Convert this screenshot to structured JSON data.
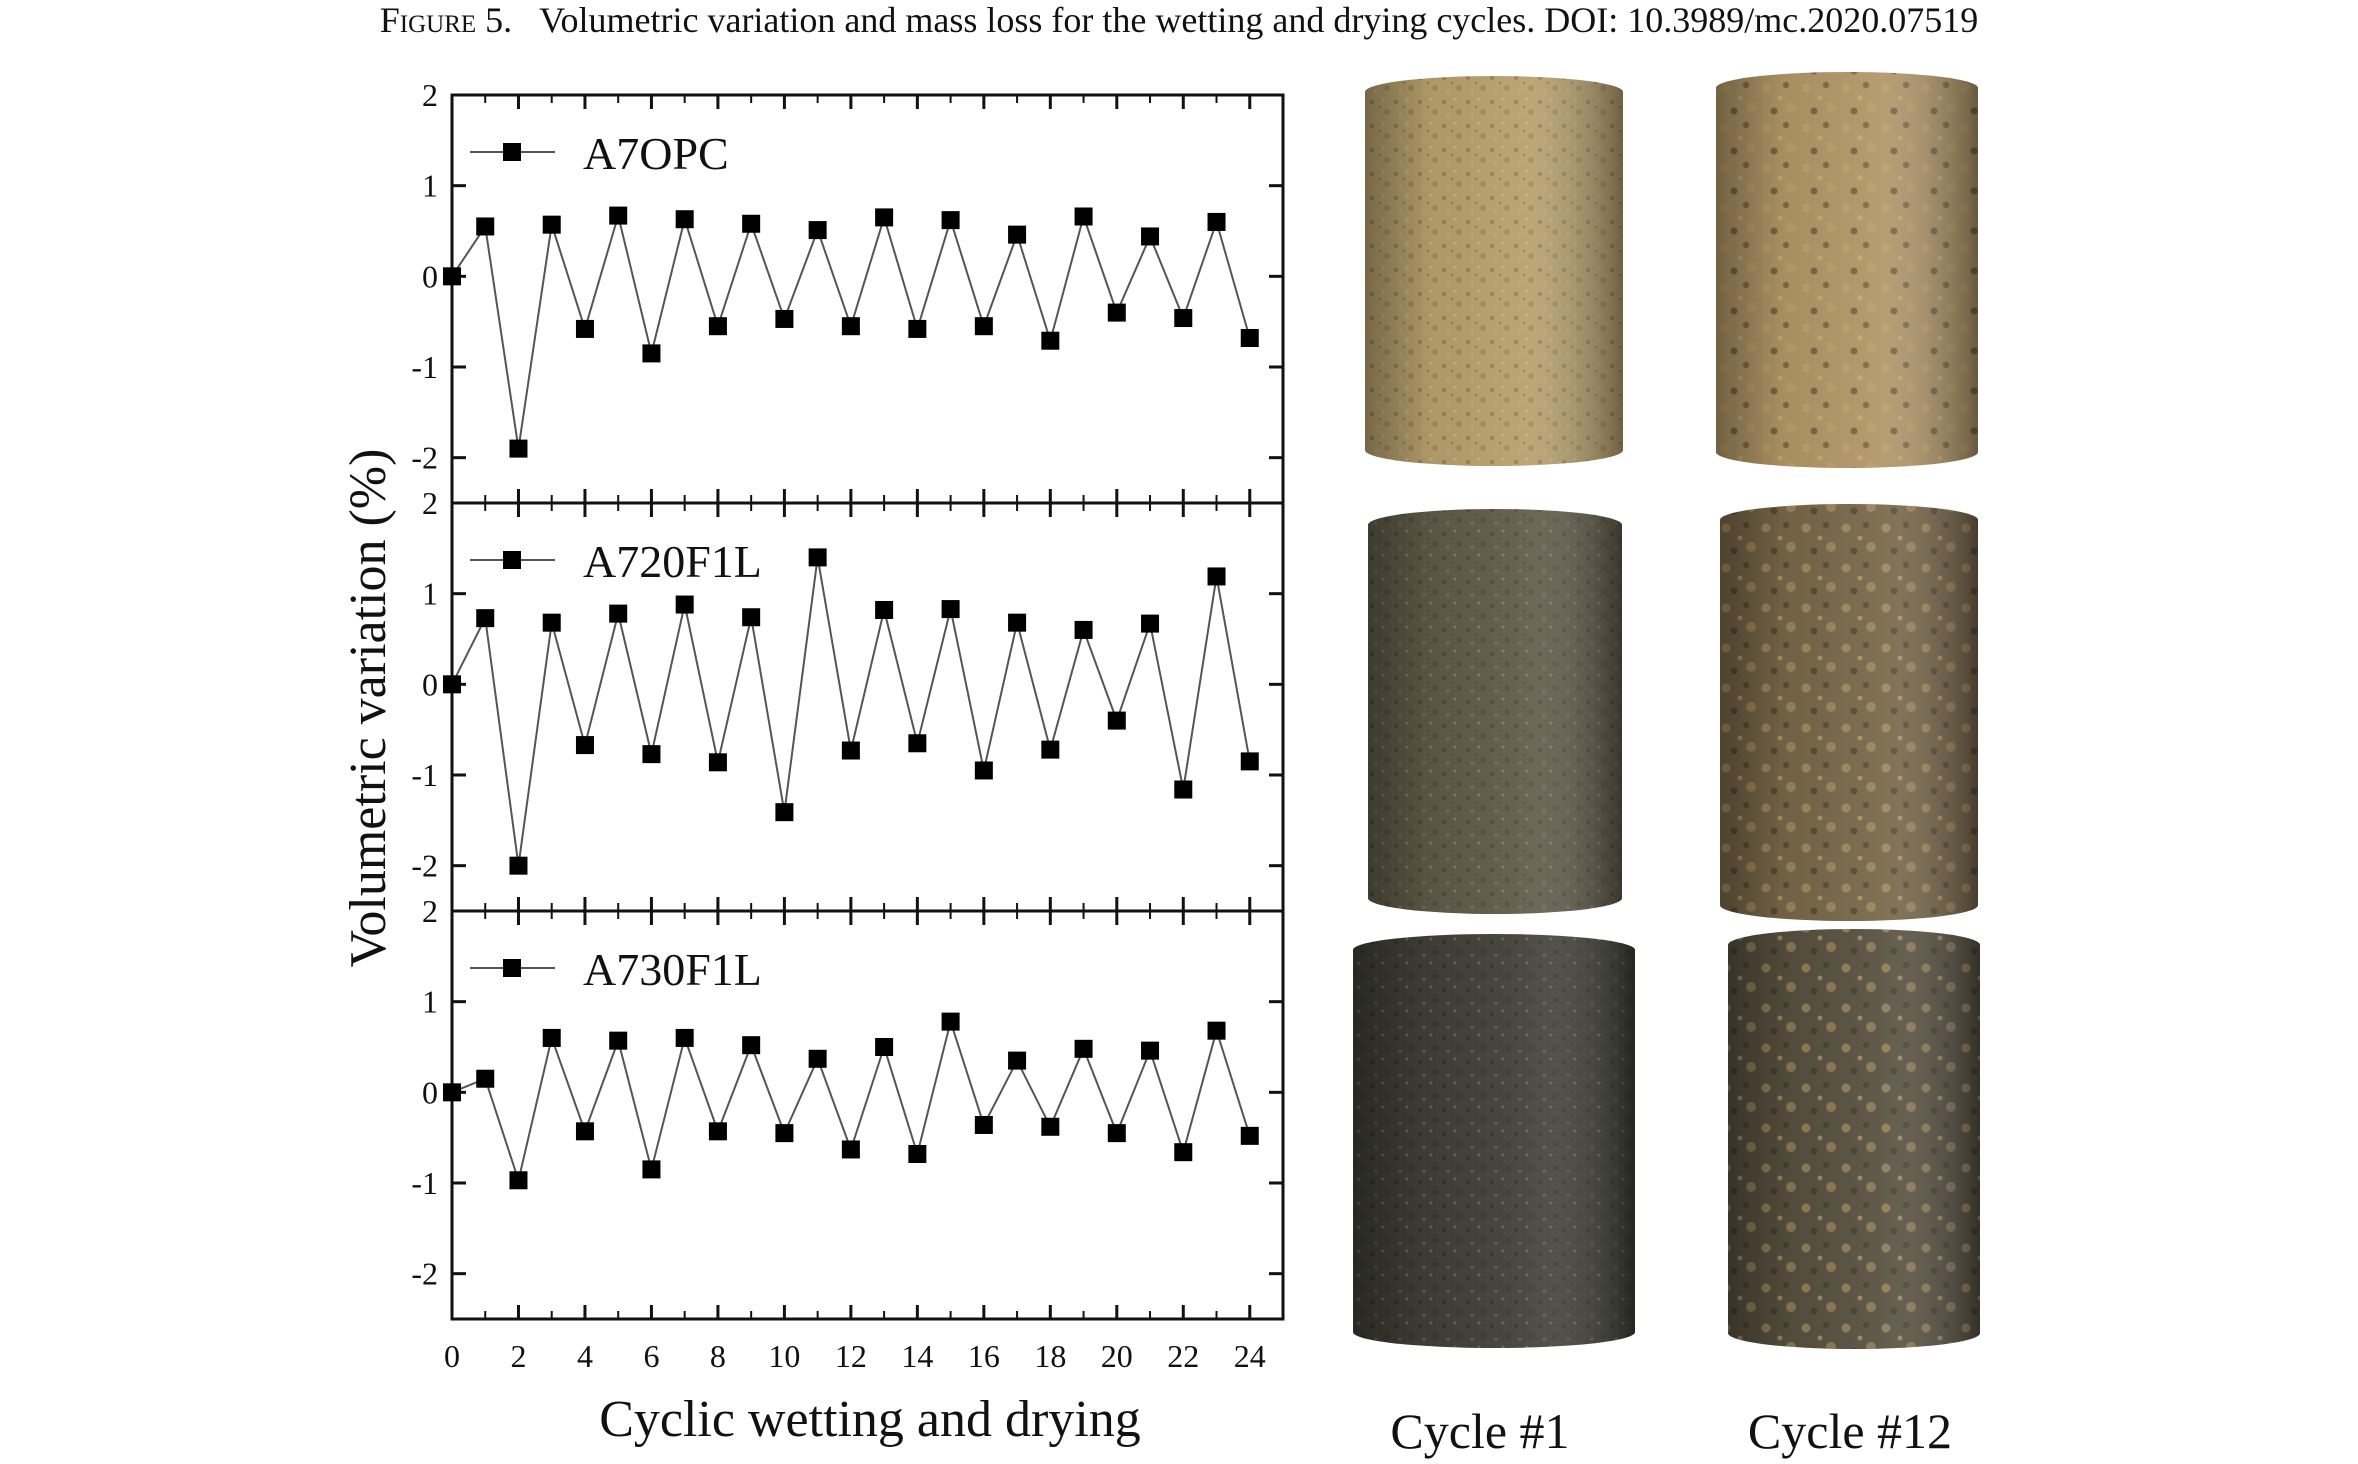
{
  "caption": {
    "figure": "Figure 5.",
    "text": "Volumetric variation and mass loss for the wetting and drying cycles. DOI: 10.3989/mc.2020.07519"
  },
  "photos": {
    "column_labels": [
      "Cycle #1",
      "Cycle #12"
    ],
    "rows": [
      {
        "sample": "A7OPC",
        "colors": {
          "cycle1": "#b79f6c",
          "cycle12": "#b09566"
        }
      },
      {
        "sample": "A720F1L",
        "colors": {
          "cycle1": "#5f5a48",
          "cycle12": "#776648"
        }
      },
      {
        "sample": "A730F1L",
        "colors": {
          "cycle1": "#3f3f36",
          "cycle12": "#57503f"
        }
      }
    ]
  },
  "chart_data": {
    "type": "line",
    "xlabel": "Cyclic wetting and drying",
    "ylabel": "Volumetric variation (%)",
    "xlim": [
      0,
      25
    ],
    "ylim": [
      -2.5,
      2
    ],
    "xticks": [
      0,
      2,
      4,
      6,
      8,
      10,
      12,
      14,
      16,
      18,
      20,
      22,
      24
    ],
    "yticks": [
      -2,
      -1,
      0,
      1,
      2
    ],
    "marker": "filled-square",
    "line_color": "#555555",
    "marker_color": "#000000",
    "panels": [
      {
        "name": "A7OPC",
        "x": [
          0,
          1,
          2,
          3,
          4,
          5,
          6,
          7,
          8,
          9,
          10,
          11,
          12,
          13,
          14,
          15,
          16,
          17,
          18,
          19,
          20,
          21,
          22,
          23,
          24
        ],
        "y": [
          0,
          0.55,
          -1.9,
          0.57,
          -0.58,
          0.67,
          -0.85,
          0.63,
          -0.55,
          0.58,
          -0.47,
          0.51,
          -0.55,
          0.65,
          -0.58,
          0.62,
          -0.55,
          0.46,
          -0.71,
          0.66,
          -0.4,
          0.44,
          -0.46,
          0.6,
          -0.68
        ]
      },
      {
        "name": "A720F1L",
        "x": [
          0,
          1,
          2,
          3,
          4,
          5,
          6,
          7,
          8,
          9,
          10,
          11,
          12,
          13,
          14,
          15,
          16,
          17,
          18,
          19,
          20,
          21,
          22,
          23,
          24
        ],
        "y": [
          0,
          0.73,
          -2.0,
          0.68,
          -0.67,
          0.78,
          -0.77,
          0.88,
          -0.86,
          0.74,
          -1.41,
          1.4,
          -0.73,
          0.82,
          -0.65,
          0.83,
          -0.95,
          0.68,
          -0.72,
          0.6,
          -0.4,
          0.67,
          -1.16,
          1.19,
          -0.85
        ]
      },
      {
        "name": "A730F1L",
        "x": [
          0,
          1,
          2,
          3,
          4,
          5,
          6,
          7,
          8,
          9,
          10,
          11,
          12,
          13,
          14,
          15,
          16,
          17,
          18,
          19,
          20,
          21,
          22,
          23,
          24
        ],
        "y": [
          0,
          0.15,
          -0.97,
          0.6,
          -0.43,
          0.57,
          -0.85,
          0.6,
          -0.43,
          0.52,
          -0.45,
          0.37,
          -0.63,
          0.5,
          -0.68,
          0.78,
          -0.36,
          0.35,
          -0.38,
          0.48,
          -0.45,
          0.46,
          -0.66,
          0.68,
          -0.48
        ]
      }
    ]
  }
}
